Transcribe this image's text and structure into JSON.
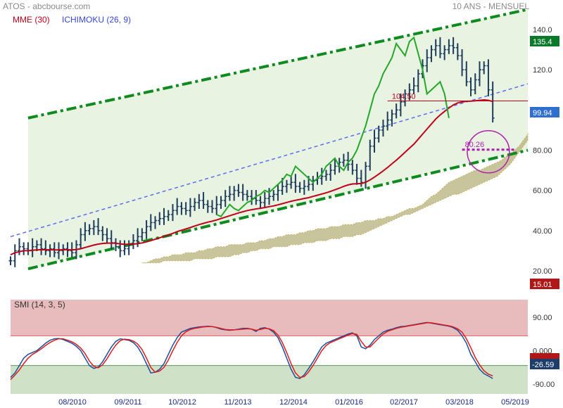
{
  "header": {
    "title": "ATOS - abcbourse.com",
    "period": "10 ANS - MENSUEL",
    "indicator_mme": "MME (30)",
    "indicator_ichimoku": "ICHIMOKU (26, 9)",
    "smi_label": "SMI (14, 3, 5)"
  },
  "colors": {
    "candle": "#1e3d5c",
    "mme": "#c0001a",
    "ichimoku": "#5a6ef0",
    "channel": "#0f8a1f",
    "chikou": "#23a82a",
    "cloud": "#b5b07a",
    "channel_fill": "#e8f3e2",
    "smi_fast": "#1a4f9e",
    "smi_slow": "#e11b1b",
    "overbought": "#e8bcbc",
    "oversold": "#cfe2c8",
    "magenta": "#b020b0",
    "badge_green": "#0a7a2a",
    "badge_blue": "#2f6fd0",
    "badge_red": "#b01818",
    "badge_navy": "#1f3d6a"
  },
  "chart_data": [
    {
      "type": "candlestick",
      "title": "ATOS - abcbourse.com",
      "period": "10 ANS - MENSUEL",
      "x_tick_labels": [
        "08/2010",
        "09/2011",
        "10/2012",
        "11/2013",
        "12/2014",
        "01/2016",
        "02/2017",
        "03/2018",
        "05/2019"
      ],
      "y_tick_labels": [
        "140.0",
        "120.0",
        "100.0",
        "80.00",
        "60.00",
        "40.00",
        "20.00"
      ],
      "ylim": [
        15,
        150
      ],
      "xlim": [
        0,
        118
      ],
      "grid": false,
      "price": [
        25,
        30,
        32,
        31,
        30,
        32,
        33,
        31,
        30,
        31,
        29,
        30,
        31,
        30,
        29,
        33,
        38,
        40,
        41,
        42,
        40,
        38,
        36,
        34,
        32,
        30,
        31,
        33,
        35,
        37,
        39,
        42,
        44,
        45,
        46,
        47,
        48,
        50,
        52,
        51,
        50,
        52,
        54,
        55,
        53,
        52,
        51,
        53,
        55,
        57,
        58,
        60,
        59,
        58,
        57,
        56,
        55,
        54,
        56,
        57,
        58,
        60,
        62,
        63,
        64,
        62,
        61,
        62,
        63,
        65,
        66,
        67,
        68,
        70,
        72,
        74,
        75,
        73,
        70,
        66,
        64,
        72,
        82,
        86,
        90,
        92,
        95,
        98,
        100,
        104,
        108,
        110,
        112,
        118,
        122,
        126,
        130,
        132,
        128,
        130,
        132,
        131,
        127,
        120,
        114,
        110,
        115,
        120,
        122,
        110,
        96
      ],
      "mme_30": [
        28,
        29,
        29.5,
        30,
        30,
        30.2,
        30.4,
        30.5,
        30.5,
        30.5,
        30.4,
        30.4,
        30.5,
        30.5,
        30.4,
        30.6,
        31,
        31.6,
        32.2,
        32.8,
        33.3,
        33.6,
        33.8,
        33.8,
        33.7,
        33.4,
        33.2,
        33.2,
        33.3,
        33.5,
        33.9,
        34.4,
        35,
        35.7,
        36.4,
        37.1,
        37.8,
        38.6,
        39.5,
        40.2,
        40.8,
        41.5,
        42.3,
        43,
        43.6,
        44.2,
        44.7,
        45.3,
        46,
        46.7,
        47.4,
        48.1,
        48.8,
        49.4,
        50,
        50.4,
        50.8,
        51.1,
        51.5,
        51.9,
        52.3,
        52.8,
        53.4,
        54,
        54.6,
        55.1,
        55.5,
        56,
        56.4,
        57,
        57.6,
        58.2,
        58.8,
        59.5,
        60.3,
        61.1,
        62,
        62.7,
        63.2,
        63.3,
        63.4,
        64,
        65.2,
        66.6,
        68.1,
        69.7,
        71.4,
        73.2,
        75,
        77,
        79,
        81,
        83,
        85.5,
        88,
        90.5,
        93,
        95.5,
        97.5,
        99.3,
        101,
        102.5,
        103.5,
        104,
        104.3,
        104.4,
        104.6,
        104.8,
        105,
        104.8,
        104.2
      ],
      "cloud_top": [
        24,
        24,
        25,
        26,
        26,
        27,
        27,
        28,
        28,
        28,
        29,
        29,
        29,
        30,
        30,
        31,
        31,
        32,
        32,
        32,
        33,
        33,
        33,
        33,
        34,
        34,
        34,
        35,
        35,
        36,
        36,
        37,
        37,
        38,
        38,
        38,
        39,
        39,
        40,
        40,
        41,
        41,
        41,
        42,
        42,
        42,
        43,
        43,
        43,
        44,
        44,
        45,
        45,
        45,
        46,
        46,
        47,
        47,
        48,
        49,
        50,
        51,
        51,
        52,
        53,
        55,
        57,
        58,
        60,
        62,
        64,
        65,
        66,
        67,
        68,
        69,
        70,
        70,
        71,
        72,
        73,
        74,
        75,
        77,
        78,
        80,
        82,
        85,
        88
      ],
      "cloud_bottom": [
        24,
        24,
        24,
        24,
        24,
        25,
        25,
        25,
        25,
        25,
        25,
        25,
        26,
        26,
        26,
        26,
        26,
        27,
        27,
        27,
        27,
        28,
        28,
        29,
        29,
        30,
        30,
        31,
        31,
        31,
        32,
        32,
        32,
        32,
        33,
        33,
        33,
        34,
        34,
        34,
        35,
        35,
        35,
        36,
        36,
        36,
        37,
        37,
        37,
        38,
        38,
        39,
        40,
        41,
        42,
        43,
        44,
        45,
        46,
        47,
        48,
        48,
        49,
        50,
        51,
        52,
        53,
        54,
        55,
        56,
        57,
        58,
        58,
        59,
        60,
        61,
        62,
        63,
        64,
        65,
        66,
        67,
        69,
        71,
        73,
        76,
        79,
        82,
        85
      ],
      "chikou": [
        48,
        47,
        50,
        53,
        51,
        50,
        52,
        54,
        55,
        57,
        58,
        60,
        59,
        61,
        63,
        65,
        68,
        67,
        72,
        70,
        68,
        66,
        64,
        66,
        68,
        72,
        74,
        76,
        72,
        70,
        74,
        76,
        80,
        86,
        92,
        100,
        108,
        112,
        118,
        122,
        126,
        133,
        130,
        127,
        134,
        136,
        128,
        120,
        108,
        110,
        112,
        114,
        108,
        96
      ],
      "channel_upper_endpoints": [
        [
          4,
          96
        ],
        [
          118,
          150
        ]
      ],
      "channel_lower_endpoints": [
        [
          4,
          21
        ],
        [
          118,
          80
        ]
      ],
      "midline_endpoints": [
        [
          0,
          37
        ],
        [
          118,
          113
        ]
      ],
      "value_labels": {
        "last_price_badge": "99.94",
        "upper_channel_badge": "135.4",
        "stop_badge": "15.01",
        "mme_level": "104.50",
        "target_level": "80.26"
      }
    },
    {
      "type": "line",
      "title": "SMI (14, 3, 5)",
      "y_tick_labels": [
        "90.00",
        "0.000",
        "-90.00"
      ],
      "ylim": [
        -110,
        110
      ],
      "xlim": [
        0,
        118
      ],
      "levels": {
        "overbought": 40,
        "oversold": -40
      },
      "smi": [
        -72,
        -60,
        -40,
        -20,
        -10,
        -5,
        0,
        10,
        20,
        28,
        32,
        33,
        30,
        25,
        20,
        12,
        0,
        -20,
        -40,
        -48,
        -44,
        -30,
        -10,
        10,
        25,
        32,
        30,
        28,
        22,
        10,
        -10,
        -35,
        -60,
        -58,
        -50,
        -35,
        -10,
        15,
        35,
        50,
        55,
        60,
        62,
        64,
        65,
        66,
        65,
        62,
        58,
        56,
        55,
        56,
        58,
        60,
        60,
        58,
        52,
        60,
        62,
        58,
        50,
        35,
        10,
        -20,
        -50,
        -72,
        -75,
        -65,
        -48,
        -30,
        -10,
        10,
        20,
        25,
        30,
        35,
        40,
        45,
        48,
        40,
        10,
        5,
        15,
        30,
        40,
        50,
        55,
        58,
        62,
        65,
        66,
        68,
        70,
        72,
        74,
        76,
        74,
        72,
        70,
        68,
        66,
        62,
        55,
        40,
        20,
        -10,
        -30,
        -50,
        -62,
        -68,
        -75
      ],
      "signal": [
        -78,
        -66,
        -52,
        -35,
        -20,
        -10,
        -3,
        5,
        14,
        22,
        28,
        32,
        32,
        28,
        24,
        17,
        7,
        -8,
        -28,
        -42,
        -46,
        -38,
        -22,
        -2,
        15,
        27,
        31,
        30,
        26,
        18,
        3,
        -20,
        -45,
        -58,
        -55,
        -45,
        -25,
        0,
        22,
        40,
        51,
        57,
        60,
        62,
        64,
        65,
        65,
        63,
        60,
        57,
        56,
        56,
        57,
        58,
        59,
        58,
        55,
        57,
        60,
        59,
        54,
        42,
        22,
        -5,
        -35,
        -60,
        -72,
        -70,
        -57,
        -40,
        -20,
        0,
        14,
        22,
        27,
        32,
        37,
        42,
        46,
        44,
        25,
        10,
        10,
        22,
        34,
        45,
        52,
        56,
        60,
        63,
        65,
        67,
        69,
        71,
        73,
        75,
        75,
        73,
        71,
        69,
        67,
        64,
        59,
        50,
        32,
        8,
        -18,
        -38,
        -54,
        -63,
        -68
      ]
    }
  ]
}
